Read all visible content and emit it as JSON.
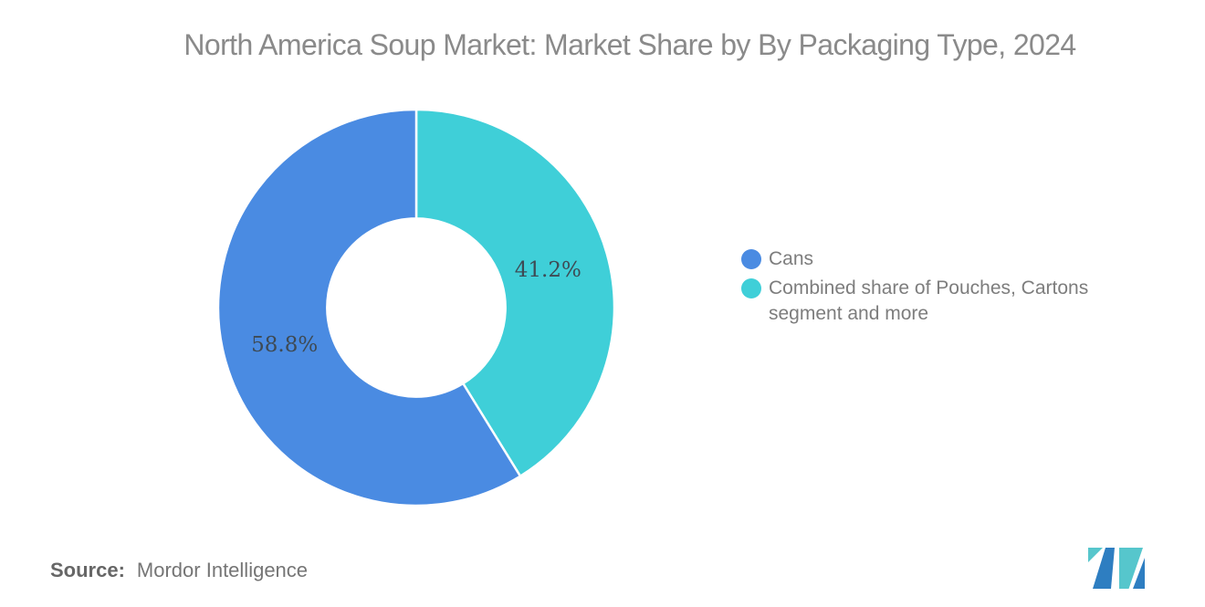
{
  "title": "North America Soup Market: Market Share by By Packaging Type, 2024",
  "chart_data": {
    "type": "pie",
    "donut": true,
    "title": "North America Soup Market: Market Share by By Packaging Type, 2024",
    "slices": [
      {
        "label": "Cans",
        "value": 58.8,
        "display": "58.8%",
        "color": "#4A8BE2"
      },
      {
        "label": "Combined share of Pouches, Cartons segment and more",
        "value": 41.2,
        "display": "41.2%",
        "color": "#3FCFD8"
      }
    ],
    "start_angle_deg": 0,
    "clockwise": true,
    "draw_order_from_top": [
      1,
      0
    ],
    "inner_radius_ratio": 0.45,
    "slice_gap_stroke": "#FFFFFF",
    "legend_position": "right",
    "grid": false
  },
  "legend": {
    "items": [
      {
        "label": "Cans",
        "color": "#4A8BE2"
      },
      {
        "label": "Combined share of Pouches, Cartons segment and more",
        "color": "#3FCFD8"
      }
    ]
  },
  "source": {
    "label": "Source:",
    "value": "Mordor Intelligence"
  },
  "logo": {
    "name": "mordor-intelligence-logo",
    "teal": "#56C6CC",
    "blue": "#2E7EC1"
  },
  "colors": {
    "background": "#FFFFFF",
    "title_text": "#8A8A8A",
    "legend_text": "#7D7D7D",
    "slice_label_text": "#3E4A54",
    "source_label": "#666666",
    "source_value": "#757575"
  }
}
